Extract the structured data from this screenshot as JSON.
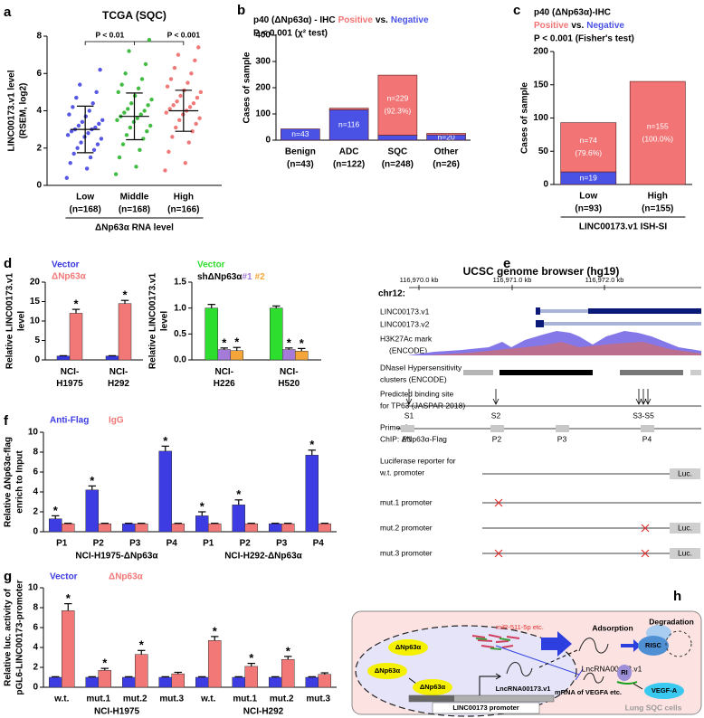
{
  "chart_data": [
    {
      "panel": "a",
      "type": "strip",
      "title": "TCGA (SQC)",
      "ylabel": [
        "LINC00173.v1 level",
        "(RSEM, log2)"
      ],
      "categories": [
        "Low",
        "Middle",
        "High"
      ],
      "category_counts": [
        "(n=168)",
        "(n=168)",
        "(n=166)"
      ],
      "xlabel": "ΔNp63α RNA level",
      "ylim": [
        0,
        8
      ],
      "yticks": [
        0,
        2,
        4,
        6,
        8
      ],
      "annotations": [
        "P < 0.01",
        "P < 0.001"
      ],
      "series": [
        {
          "color": "#3a3ae0",
          "mean": 3.0,
          "sd": 1.25,
          "values": [
            0.4,
            0.9,
            1.2,
            1.5,
            1.7,
            1.9,
            2.0,
            2.2,
            2.3,
            2.5,
            2.6,
            2.7,
            2.8,
            2.9,
            3.0,
            3.0,
            3.1,
            3.2,
            3.3,
            3.4,
            3.5,
            3.7,
            3.8,
            4.0,
            4.2,
            4.4,
            4.7,
            5.0,
            5.4,
            6.2
          ]
        },
        {
          "color": "#22b022",
          "mean": 3.7,
          "sd": 1.25,
          "values": [
            0.6,
            1.0,
            1.5,
            1.9,
            2.2,
            2.5,
            2.7,
            2.9,
            3.1,
            3.2,
            3.4,
            3.5,
            3.6,
            3.7,
            3.8,
            3.9,
            4.0,
            4.1,
            4.3,
            4.4,
            4.6,
            4.8,
            5.0,
            5.2,
            5.4,
            5.7,
            6.0,
            6.5,
            7.2,
            7.8
          ]
        },
        {
          "color": "#ee6262",
          "mean": 4.0,
          "sd": 1.1,
          "values": [
            0.8,
            1.2,
            1.8,
            2.3,
            2.6,
            2.9,
            3.1,
            3.3,
            3.5,
            3.6,
            3.8,
            3.9,
            4.0,
            4.1,
            4.2,
            4.3,
            4.4,
            4.5,
            4.7,
            4.8,
            5.0,
            5.1,
            5.3,
            5.5,
            5.7,
            6.0,
            6.3,
            6.7,
            7.0,
            7.4
          ]
        }
      ]
    },
    {
      "panel": "b",
      "type": "bar",
      "stacked": true,
      "title_parts": [
        "p40 (ΔNp63α) - IHC",
        "vs."
      ],
      "subtitle": "P < 0.001 (χ² test)",
      "ylabel": [
        "Cases of sample"
      ],
      "categories": [
        "Benign",
        "ADC",
        "SQC",
        "Other"
      ],
      "category_counts": [
        "(n=43)",
        "(n=122)",
        "(n=248)",
        "(n=26)"
      ],
      "ylim": [
        0,
        400
      ],
      "yticks": [
        0,
        100,
        200,
        300,
        400
      ],
      "series": [
        {
          "name": "Negative",
          "color": "#4a52e6",
          "values": [
            43,
            116,
            19,
            20
          ],
          "value_labels": [
            "n=43",
            "n=116",
            null,
            "n=20"
          ]
        },
        {
          "name": "Positive",
          "color": "#f27474",
          "values": [
            0,
            6,
            229,
            6
          ],
          "value_labels": [
            null,
            null,
            "n=229",
            null
          ],
          "percent_labels": [
            null,
            null,
            "(92.3%)",
            null
          ]
        }
      ]
    },
    {
      "panel": "c",
      "type": "bar",
      "stacked": true,
      "title": "p40 (ΔNp63α)-IHC",
      "title_parts": [
        "vs."
      ],
      "subtitle": "P < 0.001 (Fisher's test)",
      "ylabel": [
        "Cases of sample"
      ],
      "categories": [
        "Low",
        "High"
      ],
      "category_counts": [
        "(n=93)",
        "(n=155)"
      ],
      "xlabel": "LINC00173.v1 ISH-SI",
      "ylim": [
        0,
        200
      ],
      "yticks": [
        0,
        50,
        100,
        150,
        200
      ],
      "series": [
        {
          "name": "Negative",
          "color": "#4a52e6",
          "values": [
            19,
            0
          ],
          "value_labels": [
            "n=19",
            null
          ]
        },
        {
          "name": "Positive",
          "color": "#f27474",
          "values": [
            74,
            155
          ],
          "value_labels": [
            "n=74",
            "n=155"
          ],
          "percent_labels": [
            "(79.6%)",
            "(100.0%)"
          ]
        }
      ]
    },
    {
      "panel": "d",
      "type": "bar",
      "ylabel": [
        "Relative LINC00173.v1",
        "level"
      ],
      "categories": [
        "NCI-H1975",
        "NCI-H292"
      ],
      "ylim": [
        0,
        20
      ],
      "yticks": [
        0,
        5,
        10,
        15,
        20
      ],
      "series": [
        {
          "name": "Vector",
          "color": "#3636e0",
          "values": [
            1,
            1
          ],
          "errors": [
            0.08,
            0.08
          ]
        },
        {
          "name": "ΔNp63α",
          "color": "#f27878",
          "values": [
            12,
            14.5
          ],
          "errors": [
            1.0,
            0.8
          ],
          "stars": [
            "*",
            "*"
          ]
        }
      ]
    },
    {
      "type": "bar",
      "ylabel": [
        "Relative LINC00173.v1",
        "level"
      ],
      "legend_prefix": "shΔNp63α",
      "categories": [
        "NCI-H226",
        "NCI-H520"
      ],
      "ylim": [
        0,
        1.5
      ],
      "yticks": [
        {
          "value": 0,
          "label": "0.0"
        },
        0.5,
        {
          "value": 1,
          "label": "1.0"
        },
        1.5
      ],
      "series": [
        {
          "name": "Vector",
          "color": "#2ede2e",
          "values": [
            1,
            1
          ],
          "errors": [
            0.07,
            0.04
          ]
        },
        {
          "name": "#1",
          "color": "#a57ad8",
          "values": [
            0.2,
            0.2
          ],
          "errors": [
            0.03,
            0.03
          ],
          "stars": [
            "*",
            "*"
          ]
        },
        {
          "name": "#2",
          "color": "#f5a63a",
          "values": [
            0.18,
            0.17
          ],
          "errors": [
            0.06,
            0.05
          ],
          "stars": [
            "*",
            "*"
          ]
        }
      ]
    },
    {
      "panel": "f",
      "type": "bar",
      "ylabel": [
        "Relative ΔNp63α-flag",
        "enrich to Input"
      ],
      "categories": [
        "P1",
        "P2",
        "P3",
        "P4",
        "P1",
        "P2",
        "P3",
        "P4"
      ],
      "groups": [
        "NCI-H1975-ΔNp63α",
        "NCI-H292-ΔNp63α"
      ],
      "ylim": [
        0,
        10
      ],
      "yticks": [
        0,
        2,
        4,
        6,
        8,
        10
      ],
      "series": [
        {
          "name": "Anti-Flag",
          "color": "#3c3ce2",
          "values": [
            1.3,
            4.2,
            0.8,
            8.1,
            1.6,
            2.7,
            0.8,
            7.7
          ],
          "errors": [
            0.3,
            0.4,
            0.05,
            0.5,
            0.4,
            0.5,
            0.05,
            0.5
          ],
          "stars": [
            "*",
            "*",
            null,
            "*",
            "*",
            "*",
            null,
            "*"
          ]
        },
        {
          "name": "IgG",
          "color": "#f27878",
          "values": [
            0.8,
            0.8,
            0.8,
            0.8,
            0.8,
            0.8,
            0.8,
            0.8
          ],
          "errors": [
            0.05,
            0.05,
            0.05,
            0.05,
            0.05,
            0.05,
            0.05,
            0.05
          ]
        }
      ]
    },
    {
      "panel": "g",
      "type": "bar",
      "ylabel": [
        "Relative luc. activity of",
        "pGL6-LINC00173-promoter"
      ],
      "categories": [
        "w.t.",
        "mut.1",
        "mut.2",
        "mut.3",
        "w.t.",
        "mut.1",
        "mut.2",
        "mut.3"
      ],
      "groups": [
        "NCI-H1975",
        "NCI-H292"
      ],
      "ylim": [
        0,
        10
      ],
      "yticks": [
        0,
        2,
        4,
        6,
        8,
        10
      ],
      "series": [
        {
          "name": "Vector",
          "color": "#3c3ce2",
          "values": [
            1,
            1,
            1,
            1,
            1,
            1,
            1,
            1
          ],
          "errors": [
            0.06,
            0.06,
            0.06,
            0.06,
            0.06,
            0.06,
            0.06,
            0.06
          ]
        },
        {
          "name": "ΔNp63α",
          "color": "#f27878",
          "values": [
            7.7,
            1.7,
            3.3,
            1.35,
            4.7,
            2.1,
            2.8,
            1.3
          ],
          "errors": [
            0.7,
            0.2,
            0.4,
            0.15,
            0.4,
            0.3,
            0.3,
            0.15
          ],
          "stars": [
            "*",
            "*",
            "*",
            null,
            "*",
            "*",
            "*",
            null
          ]
        }
      ]
    }
  ],
  "genome_browser": {
    "panel": "e",
    "title": "UCSC genome browser (hg19)",
    "chrom": "chr12:",
    "coordinates": [
      "116,970.0 kb",
      "116,971.0 kb",
      "116,972.0 kb"
    ],
    "tracks": [
      "LINC00173.v1",
      "LINC00173.v2",
      "H3K27Ac mark",
      "(ENCODE)",
      "DNaseI Hypersensitivity",
      "clusters (ENCODE)",
      "Predicted binding site",
      "for TP63 (JASPAR 2018)",
      "Primer for",
      "ChIP: ΔNp63α-Flag",
      "Luciferase reporter for",
      "w.t. promoter",
      "mut.1 promoter",
      "mut.2 promoter",
      "mut.3 promoter"
    ],
    "sites": [
      "S1",
      "S2",
      "S3-S5"
    ],
    "primers": [
      "P1",
      "P2",
      "P3",
      "P4"
    ],
    "reporter": [
      "Luc.",
      "Luc.",
      "Luc."
    ]
  },
  "model": {
    "panel": "h",
    "mirna": "miR-511-5p etc.",
    "adsorption": "Adsorption",
    "degradation": "Degradation",
    "risc": "RISC",
    "lncrna": "LncRNA00173.v1",
    "lncrna_nucleus": "LncRNA00173.v1",
    "tf": [
      "ΔNp63α",
      "ΔNp63α",
      "ΔNp63α"
    ],
    "promoter": "LINC00173 promoter",
    "mrna": "mRNA of VEGFA etc.",
    "ribosome": "RI",
    "protein": "VEGF-A",
    "cell": "Lung SQC cells"
  }
}
